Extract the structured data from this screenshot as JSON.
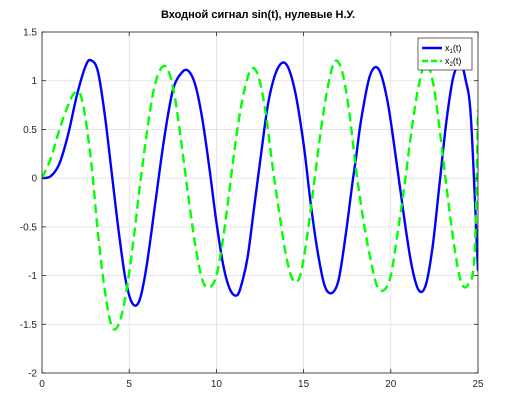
{
  "chart_data": {
    "type": "line",
    "title": "Входной сигнал sin(t), нулевые Н.У.",
    "xlabel": "",
    "ylabel": "",
    "xlim": [
      0,
      25
    ],
    "ylim": [
      -2,
      1.5
    ],
    "grid": true,
    "legend_position": "top-right",
    "xticks": [
      "0",
      "5",
      "10",
      "15",
      "20",
      "25"
    ],
    "yticks": [
      "1.5",
      "1",
      "0.5",
      "0",
      "-0.5",
      "-1",
      "-1.5",
      "-2"
    ],
    "series": [
      {
        "name": "x1(t)",
        "color": "#0000ff",
        "style": "solid",
        "x": [
          0,
          0.5,
          1,
          1.5,
          2,
          2.5,
          2.8,
          3.2,
          3.6,
          4,
          4.4,
          4.8,
          5.2,
          5.6,
          6,
          6.5,
          7,
          7.5,
          8,
          8.4,
          8.8,
          9.2,
          9.6,
          10,
          10.4,
          10.8,
          11.2,
          11.5,
          11.8,
          12.2,
          12.6,
          13,
          13.5,
          14,
          14.5,
          15,
          15.4,
          15.8,
          16.2,
          16.6,
          17,
          17.4,
          17.8,
          18,
          18.3,
          18.8,
          19.3,
          19.8,
          20.3,
          20.8,
          21.2,
          21.6,
          22,
          22.4,
          22.8,
          23.2,
          23.6,
          24,
          24.3,
          24.6,
          25
        ],
        "y": [
          0,
          0.02,
          0.15,
          0.45,
          0.85,
          1.15,
          1.21,
          1.1,
          0.65,
          0.05,
          -0.55,
          -1.05,
          -1.29,
          -1.25,
          -0.9,
          -0.25,
          0.4,
          0.9,
          1.08,
          1.1,
          0.95,
          0.6,
          0.1,
          -0.45,
          -0.9,
          -1.15,
          -1.2,
          -1.05,
          -0.8,
          -0.25,
          0.3,
          0.8,
          1.12,
          1.17,
          0.9,
          0.35,
          -0.25,
          -0.75,
          -1.1,
          -1.18,
          -1.05,
          -0.6,
          -0.05,
          0.2,
          0.6,
          1.05,
          1.12,
          0.8,
          0.2,
          -0.45,
          -0.9,
          -1.15,
          -1.1,
          -0.7,
          -0.05,
          0.6,
          1.05,
          1.17,
          1.0,
          0.6,
          -0.95
        ]
      },
      {
        "name": "x2(t)",
        "color": "#00ff00",
        "style": "dashed",
        "x": [
          0,
          0.5,
          1,
          1.5,
          1.9,
          2.3,
          2.8,
          3.2,
          3.6,
          4,
          4.4,
          4.8,
          5.2,
          5.6,
          6,
          6.4,
          6.8,
          7.2,
          7.6,
          8,
          8.4,
          8.8,
          9.2,
          9.6,
          10,
          10.4,
          10.8,
          11.2,
          11.6,
          12,
          12.4,
          12.8,
          13.2,
          13.6,
          14,
          14.4,
          14.8,
          15.2,
          15.6,
          16,
          16.4,
          16.8,
          17.2,
          17.6,
          18,
          18.4,
          18.8,
          19.2,
          19.6,
          20,
          20.4,
          20.8,
          21.2,
          21.6,
          22,
          22.4,
          22.8,
          23.2,
          23.6,
          24,
          24.4,
          24.8,
          25
        ],
        "y": [
          0,
          0.2,
          0.5,
          0.75,
          0.88,
          0.8,
          0.2,
          -0.55,
          -1.15,
          -1.52,
          -1.5,
          -1.2,
          -0.7,
          -0.1,
          0.45,
          0.9,
          1.12,
          1.12,
          0.85,
          0.35,
          -0.2,
          -0.7,
          -1.05,
          -1.12,
          -1.0,
          -0.6,
          -0.05,
          0.5,
          0.9,
          1.12,
          1.05,
          0.7,
          0.15,
          -0.35,
          -0.8,
          -1.05,
          -1.0,
          -0.6,
          -0.05,
          0.5,
          0.95,
          1.2,
          1.1,
          0.7,
          0.1,
          -0.4,
          -0.8,
          -1.1,
          -1.15,
          -1.0,
          -0.55,
          -0.05,
          0.5,
          0.95,
          1.18,
          1.0,
          0.5,
          -0.1,
          -0.65,
          -1.05,
          -1.1,
          -0.8,
          0.7
        ]
      }
    ]
  }
}
